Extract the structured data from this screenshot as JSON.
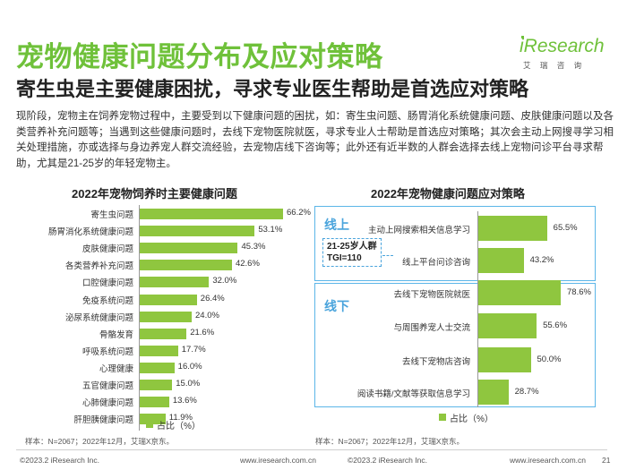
{
  "header": {
    "title": "宠物健康问题分布及应对策略",
    "subtitle": "寄生虫是主要健康困扰，寻求专业医生帮助是首选应对策略",
    "body": "现阶段，宠物主在饲养宠物过程中，主要受到以下健康问题的困扰，如：寄生虫问题、肠胃消化系统健康问题、皮肤健康问题以及各类营养补充问题等；当遇到这些健康问题时，去线下宠物医院就医，寻求专业人士帮助是首选应对策略；其次会主动上网搜寻学习相关处理措施，亦或选择与身边养宠人群交流经验，去宠物店线下咨询等；此外还有近半数的人群会选择去线上宠物问诊平台寻求帮助，尤其是21-25岁的年轻宠物主。"
  },
  "logo": {
    "brand": "iResearch",
    "sub": "艾 瑞 咨 询"
  },
  "chart_data": [
    {
      "type": "bar",
      "orientation": "horizontal",
      "title": "2022年宠物饲养时主要健康问题",
      "categories": [
        "寄生虫问题",
        "肠胃消化系统健康问题",
        "皮肤健康问题",
        "各类营养补充问题",
        "口腔健康问题",
        "免疫系统问题",
        "泌尿系统健康问题",
        "骨骼发育",
        "呼吸系统问题",
        "心理健康",
        "五官健康问题",
        "心肺健康问题",
        "肝胆胰健康问题"
      ],
      "values": [
        66.2,
        53.1,
        45.3,
        42.6,
        32.0,
        26.4,
        24.0,
        21.6,
        17.7,
        16.0,
        15.0,
        13.6,
        11.9
      ],
      "value_labels": [
        "66.2%",
        "53.1%",
        "45.3%",
        "42.6%",
        "32.0%",
        "26.4%",
        "24.0%",
        "21.6%",
        "17.7%",
        "16.0%",
        "15.0%",
        "13.6%",
        "11.9%"
      ],
      "legend": "占比（%）",
      "xlim": [
        0,
        70
      ],
      "color": "#8fc63f"
    },
    {
      "type": "bar",
      "orientation": "horizontal",
      "title": "2022年宠物健康问题应对策略",
      "groups": [
        {
          "name": "线上",
          "categories": [
            "主动上网搜索相关信息学习",
            "线上平台问诊咨询"
          ],
          "values": [
            65.5,
            43.2
          ],
          "value_labels": [
            "65.5%",
            "43.2%"
          ]
        },
        {
          "name": "线下",
          "categories": [
            "去线下宠物医院就医",
            "与周围养宠人士交流",
            "去线下宠物店咨询",
            "阅读书籍/文献等获取信息学习"
          ],
          "values": [
            78.6,
            55.6,
            50.0,
            28.7
          ],
          "value_labels": [
            "78.6%",
            "55.6%",
            "50.0%",
            "28.7%"
          ]
        }
      ],
      "callout": {
        "line1": "21-25岁人群",
        "line2": "TGI=110"
      },
      "legend": "占比（%）",
      "xlim": [
        0,
        100
      ],
      "color": "#8fc63f"
    }
  ],
  "footer": {
    "left_source": "样本：N=2067；2022年12月，艾瑞X京东。",
    "right_source": "样本：N=2067；2022年12月，艾瑞X京东。",
    "left_copyright": "©2023.2 iResearch Inc.",
    "left_url": "www.iresearch.com.cn",
    "right_copyright": "©2023.2 iResearch Inc.",
    "right_url": "www.iresearch.com.cn",
    "page": "21"
  }
}
